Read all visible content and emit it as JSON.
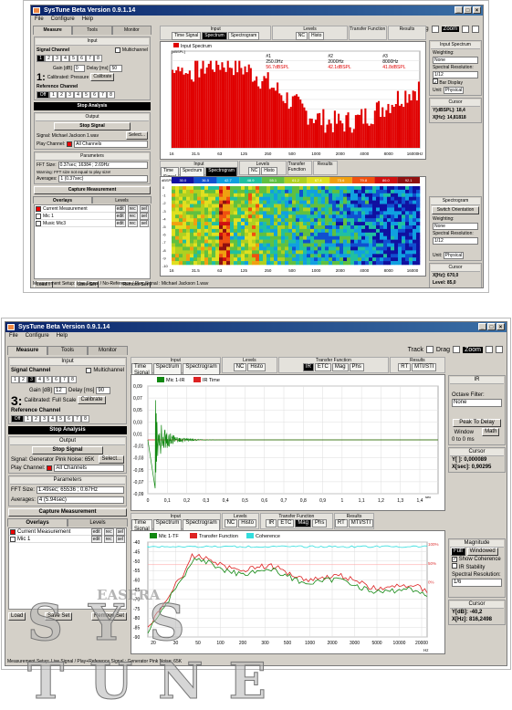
{
  "app": {
    "title1": "SysTune Beta Version 0.9.1.14",
    "title2": "SysTune Beta Version 0.9.1.14",
    "menu": [
      "File",
      "Configure",
      "Help"
    ]
  },
  "toolbar": {
    "track": "Track",
    "drag": "Drag",
    "zoom": "Zoom"
  },
  "left_tabs": [
    "Measure",
    "Tools",
    "Monitor"
  ],
  "s1": {
    "input_title": "Input",
    "signal_channel": "Signal Channel",
    "multichannel": "Multichannel",
    "channels": [
      "1",
      "2",
      "3",
      "4",
      "5",
      "6",
      "7",
      "8"
    ],
    "active_channel": "1",
    "gain_label": "Gain [dB]",
    "gain_val": "0",
    "delay_label": "Delay [ms]",
    "delay_val": "50",
    "cal_text": "Calibrated: Pressure",
    "calibrate": "Calibrate",
    "big_num": "1:",
    "ref_channel": "Reference Channel",
    "ref_off": "Off",
    "stop_analysis": "Stop Analysis",
    "output_title": "Output",
    "stop_signal": "Stop Signal",
    "signal_text": "Signal: Michael Jackson 1.wav",
    "select": "Select...",
    "play_channel": "Play Channel:",
    "play_val": "All Channels",
    "params_title": "Parameters",
    "fft_label": "FFT Size:",
    "fft_val": "0.37sec; 16384 ; 2.69Hz",
    "warning": "Warning: FFT size not equal to play size!",
    "avg_label": "Averages:",
    "avg_val": "1 (0.37sec)",
    "capture": "Capture Measurement",
    "overlays_tab": "Overlays",
    "levels_tab": "Levels",
    "overlays": [
      "Current Measurement",
      "Mic 1",
      "Music Mic3"
    ],
    "load": "Load...",
    "save": "Save Set",
    "remove": "Remove Set",
    "status": "Measurement Setup: Live Signal / No-Reference / Play Signal : Michael Jackson 1.wav"
  },
  "s1_main": {
    "groups": [
      {
        "t": "Input",
        "b": [
          "Time Signal",
          "Spectrum",
          "Spectrogram"
        ],
        "on": "Spectrum"
      },
      {
        "t": "Levels",
        "b": [
          "NC",
          "Histo"
        ],
        "on": ""
      },
      {
        "t": "Transfer Function",
        "b": [],
        "on": ""
      },
      {
        "t": "Results",
        "b": [],
        "on": ""
      }
    ],
    "groups2": [
      {
        "t": "Input",
        "b": [
          "Time Signal",
          "Spectrum",
          "Spectrogram"
        ],
        "on": "Spectrogram"
      },
      {
        "t": "Levels",
        "b": [
          "NC",
          "Histo"
        ],
        "on": ""
      },
      {
        "t": "Transfer Function",
        "b": [],
        "on": ""
      },
      {
        "t": "Results",
        "b": [],
        "on": ""
      }
    ],
    "legend": "Input Spectrum",
    "unit": "dBSPL",
    "markers": [
      {
        "id": "#1",
        "f": "250.0Hz",
        "v": "56.7dBSPL"
      },
      {
        "id": "#2",
        "f": "2000Hz",
        "v": "42.1dBSPL"
      },
      {
        "id": "#3",
        "f": "8000Hz",
        "v": "41.8dBSPL"
      }
    ],
    "x_ticks": [
      "16",
      "31.5",
      "63",
      "125",
      "250",
      "500",
      "1000",
      "2000",
      "4000",
      "8000",
      "16000"
    ],
    "x_unit": "Hz",
    "sg_unit": "dBSPL",
    "sg_scale": [
      "30.0",
      "36.5",
      "42.7",
      "48.9",
      "55.1",
      "61.2",
      "67.4",
      "73.6",
      "79.8",
      "86.0",
      "92.1"
    ],
    "sg_y": [
      "0",
      "-1",
      "-2",
      "-3",
      "-4",
      "-5",
      "-6",
      "-7",
      "-8",
      "-9",
      "-10"
    ],
    "sg_yunit": "sec"
  },
  "s1_right": {
    "input_spectrum": "Input Spectrum",
    "weighting": "Weighting:",
    "weighting_val": "None",
    "spec_res": "Spectral Resolution:",
    "spec_res_val": "1/12",
    "bar_display": "Bar Display",
    "unit": "Unit:",
    "unit_val": "Physical",
    "cursor": "Cursor",
    "cursor_y": "Y[dBSPL]: 18,4",
    "cursor_x": "X[Hz]: 14,81818",
    "spectrogram": "Spectrogram",
    "switch_orient": "Switch Orientation",
    "weighting2_val": "None",
    "spec_res2_val": "1/12",
    "unit2_val": "Physical",
    "cursor2_x": "X[Hz]: 670,0",
    "cursor2_level": "Level: 85,0"
  },
  "s2": {
    "signal_channel": "Signal Channel",
    "multichannel": "Multichannel",
    "channels": [
      "1",
      "2",
      "3",
      "4",
      "5",
      "6",
      "7",
      "8"
    ],
    "active_channel": "3",
    "gain_label": "Gain [dB]",
    "gain_val": "12",
    "delay_label": "Delay [ms]",
    "delay_val": "90",
    "cal_text": "Calibrated: Full Scale",
    "calibrate": "Calibrate",
    "big_num": "3:",
    "ref_channel": "Reference Channel",
    "ref_off": "Off",
    "stop_analysis": "Stop Analysis",
    "output_title": "Output",
    "stop_signal": "Stop Signal",
    "signal_text": "Signal: Generator Pink Noise: 65K",
    "select": "Select...",
    "play_channel": "Play Channel:",
    "play_val": "All Channels",
    "params_title": "Parameters",
    "fft_label": "FFT Size:",
    "fft_val": "1.49sec; 65536 ; 0.67Hz",
    "avg_label": "Averages:",
    "avg_val": "4 (5.94sec)",
    "capture": "Capture Measurement",
    "overlays_tab": "Overlays",
    "levels_tab": "Levels",
    "overlays": [
      "Current Measurement",
      "Mic 1"
    ],
    "load": "Load",
    "save": "Save Set",
    "remove": "Remove Set",
    "status": "Measurement Setup: Live Signal / Play+Reference Signal : Generator Pink Noise: 65K"
  },
  "s2_main": {
    "groups": [
      {
        "t": "Input",
        "b": [
          "Time Signal",
          "Spectrum",
          "Spectrogram"
        ],
        "on": ""
      },
      {
        "t": "Levels",
        "b": [
          "NC",
          "Histo"
        ],
        "on": ""
      },
      {
        "t": "Transfer Function",
        "b": [
          "IR",
          "ETC",
          "Mag",
          "Phs"
        ],
        "on": "IR"
      },
      {
        "t": "Results",
        "b": [
          "RT",
          "MTI/STI"
        ],
        "on": ""
      }
    ],
    "groups2": [
      {
        "t": "Input",
        "b": [
          "Time Signal",
          "Spectrum",
          "Spectrogram"
        ],
        "on": ""
      },
      {
        "t": "Levels",
        "b": [
          "NC",
          "Histo"
        ],
        "on": ""
      },
      {
        "t": "Transfer Function",
        "b": [
          "IR",
          "ETC",
          "Mag",
          "Phs"
        ],
        "on": "Mag"
      },
      {
        "t": "Results",
        "b": [
          "RT",
          "MTI/STI"
        ],
        "on": ""
      }
    ],
    "ir_legend": [
      "Mic 1-IR",
      "IR Time"
    ],
    "ir_y": [
      "0,09",
      "0,07",
      "0,05",
      "0,03",
      "0,01",
      "-0,01",
      "-0,03",
      "-0,05",
      "-0,07",
      "-0,09"
    ],
    "ir_x": [
      "0",
      "0,1",
      "0,2",
      "0,3",
      "0,4",
      "0,5",
      "0,6",
      "0,7",
      "0,8",
      "0,9",
      "1",
      "1,1",
      "1,2",
      "1,3",
      "1,4"
    ],
    "ir_xunit": "sec",
    "mag_legend": [
      "Mic 1-TF",
      "Transfer Function",
      "Coherence"
    ],
    "mag_y": [
      "-40",
      "-45",
      "-50",
      "-55",
      "-60",
      "-65",
      "-70",
      "-75",
      "-80",
      "-85",
      "-90"
    ],
    "mag_right": [
      "100%",
      "50%",
      "0%"
    ],
    "mag_x": [
      "20",
      "30",
      "50",
      "100",
      "200",
      "300",
      "500",
      "1000",
      "2000",
      "3000",
      "5000",
      "10000",
      "20000"
    ],
    "mag_xunit": "Hz"
  },
  "s2_right": {
    "ir": "IR",
    "octave_filter": "Octave Filter:",
    "octave_val": "None",
    "peak_delay": "Peak To Delay",
    "window": "Window",
    "math": "Math",
    "range": "0 to 0 ms",
    "cursor": "Cursor",
    "cursor_y": "Y[ ]: 0,000089",
    "cursor_x": "X[sec]: 0,90295",
    "magnitude": "Magnitude",
    "full": "Full",
    "windowed": "Windowed",
    "show_coherence": "Show Coherence",
    "ir_stability": "IR Stability",
    "spec_res": "Spectral Resolution:",
    "spec_res_val": "1/6",
    "cursor2": "Cursor",
    "cursor2_y": "Y[dB]: -40,2",
    "cursor2_x": "X[Hz]: 816,2498"
  },
  "watermark": {
    "text": "SYS TUNE",
    "sub": "EASERA"
  },
  "colors": {
    "title_bar": "#0a246a",
    "spectrum_red": "#e00000",
    "ir_green": "#118811",
    "tf_red": "#dd2222",
    "coherence": "#33dddd"
  }
}
